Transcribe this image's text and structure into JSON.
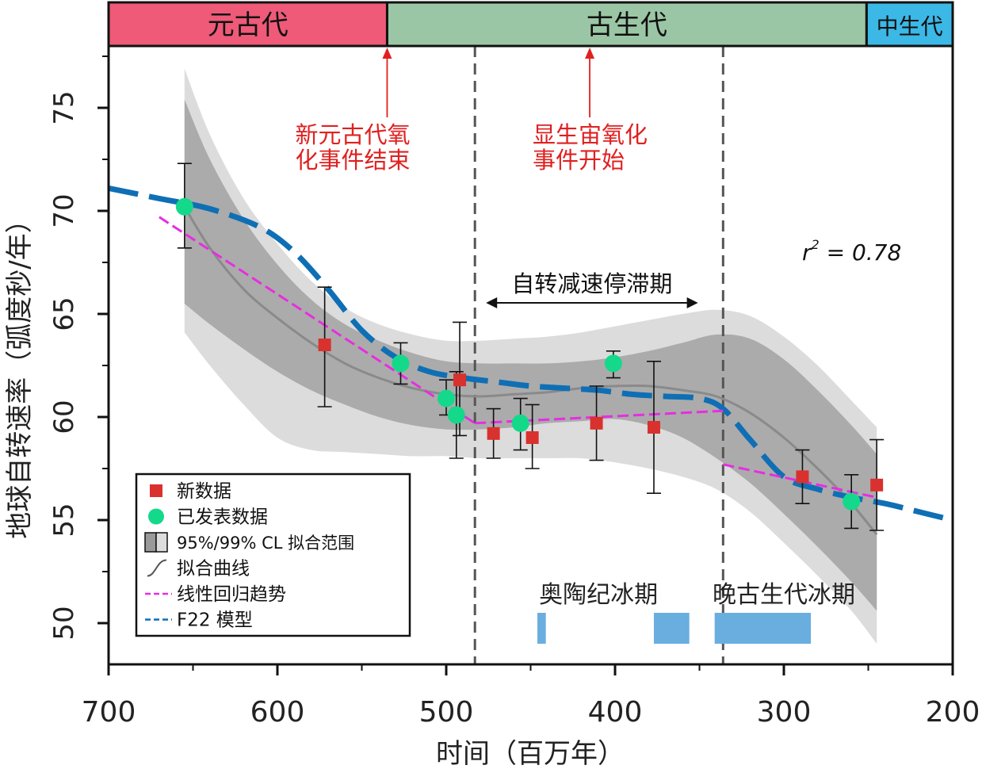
{
  "chart_data": {
    "type": "scatter",
    "xlabel": "时间（百万年）",
    "ylabel": "地球自转速率（弧度秒/年）",
    "xlim": [
      700,
      200
    ],
    "ylim": [
      48,
      78
    ],
    "x_ticks": [
      700,
      600,
      500,
      400,
      300,
      200
    ],
    "y_ticks": [
      50,
      55,
      60,
      65,
      70,
      75
    ],
    "x_tick_labels": [
      "700",
      "600",
      "500",
      "400",
      "300",
      "200"
    ],
    "y_tick_labels": [
      "50",
      "55",
      "60",
      "65",
      "70",
      "75"
    ],
    "grid": false,
    "legend_position": "bottom-left",
    "eras": [
      {
        "label": "元古代",
        "from": 700,
        "to": 535,
        "color": "#ee5a78"
      },
      {
        "label": "古生代",
        "from": 535,
        "to": 251,
        "color": "#9bc6a5"
      },
      {
        "label": "中生代",
        "from": 251,
        "to": 200,
        "color": "#3bb8e6"
      }
    ],
    "series": [
      {
        "name": "新数据",
        "marker": "square",
        "color": "#d9312e",
        "points": [
          {
            "x": 572,
            "y": 63.5,
            "err_low": 60.5,
            "err_high": 66.3
          },
          {
            "x": 492,
            "y": 61.8,
            "err_low": 59.1,
            "err_high": 64.6
          },
          {
            "x": 472,
            "y": 59.2,
            "err_low": 58.0,
            "err_high": 60.4
          },
          {
            "x": 449,
            "y": 59.0,
            "err_low": 57.5,
            "err_high": 60.6
          },
          {
            "x": 411,
            "y": 59.7,
            "err_low": 57.9,
            "err_high": 61.5
          },
          {
            "x": 377,
            "y": 59.5,
            "err_low": 56.3,
            "err_high": 62.7
          },
          {
            "x": 289,
            "y": 57.1,
            "err_low": 55.8,
            "err_high": 58.4
          },
          {
            "x": 245,
            "y": 56.7,
            "err_low": 54.5,
            "err_high": 58.9
          }
        ]
      },
      {
        "name": "已发表数据",
        "marker": "circle",
        "color": "#14d98a",
        "points": [
          {
            "x": 655,
            "y": 70.2,
            "err_low": 68.2,
            "err_high": 72.3
          },
          {
            "x": 527,
            "y": 62.6,
            "err_low": 61.6,
            "err_high": 63.6
          },
          {
            "x": 500,
            "y": 60.9,
            "err_low": 60.1,
            "err_high": 61.8
          },
          {
            "x": 494,
            "y": 60.1,
            "err_low": 58.0,
            "err_high": 62.2
          },
          {
            "x": 456,
            "y": 59.7,
            "err_low": 58.4,
            "err_high": 60.9
          },
          {
            "x": 401,
            "y": 62.6,
            "err_low": 61.9,
            "err_high": 63.2
          },
          {
            "x": 260,
            "y": 55.9,
            "err_low": 54.6,
            "err_high": 57.2
          }
        ]
      }
    ],
    "fit_curve": {
      "name": "拟合曲线",
      "color": "#8a8a8a",
      "x": [
        655,
        640,
        620,
        600,
        580,
        560,
        540,
        520,
        500,
        480,
        460,
        440,
        420,
        400,
        380,
        360,
        340,
        320,
        300,
        280,
        260,
        245
      ],
      "y": [
        70.2,
        68.2,
        66.2,
        64.8,
        63.6,
        62.6,
        61.9,
        61.4,
        61.1,
        61.0,
        61.1,
        61.2,
        61.4,
        61.5,
        61.5,
        61.3,
        61.0,
        60.2,
        59.0,
        57.5,
        55.8,
        54.3
      ],
      "ci95_upper": [
        75.4,
        72.5,
        69.6,
        67.4,
        65.7,
        64.5,
        63.7,
        63.1,
        62.7,
        62.6,
        62.6,
        62.6,
        62.7,
        62.9,
        63.2,
        63.6,
        64.0,
        63.8,
        62.8,
        61.3,
        59.6,
        58.2
      ],
      "ci95_lower": [
        65.5,
        64.5,
        63.3,
        62.2,
        61.3,
        60.6,
        60.0,
        59.6,
        59.4,
        59.4,
        59.5,
        59.7,
        59.8,
        59.9,
        59.6,
        59.0,
        58.0,
        56.8,
        55.3,
        53.7,
        52.0,
        50.6
      ],
      "ci99_upper": [
        76.9,
        73.7,
        70.6,
        68.4,
        66.6,
        65.3,
        64.5,
        64.0,
        63.7,
        63.7,
        63.8,
        63.9,
        64.1,
        64.4,
        64.7,
        65.0,
        65.2,
        64.9,
        63.9,
        62.5,
        60.8,
        59.5
      ],
      "ci99_lower": [
        64.1,
        62.5,
        60.6,
        59.0,
        58.4,
        58.3,
        58.2,
        58.1,
        58.1,
        58.0,
        58.0,
        58.0,
        58.0,
        57.8,
        57.5,
        57.1,
        56.5,
        55.4,
        53.9,
        52.3,
        50.6,
        49.0
      ]
    },
    "linear_trends": {
      "name": "线性回归趋势",
      "color": "#e62ee0",
      "segments": [
        {
          "x": [
            670,
            483
          ],
          "y": [
            69.7,
            59.7
          ]
        },
        {
          "x": [
            483,
            336
          ],
          "y": [
            59.7,
            60.3
          ]
        },
        {
          "x": [
            336,
            245
          ],
          "y": [
            57.7,
            56.1
          ]
        }
      ]
    },
    "f22_model": {
      "name": "F22 模型",
      "color": "#0f6fb5",
      "x": [
        700,
        670,
        640,
        610,
        590,
        570,
        550,
        530,
        510,
        490,
        470,
        450,
        430,
        410,
        390,
        370,
        350,
        336,
        320,
        300,
        280,
        260,
        240,
        220,
        200
      ],
      "y": [
        71.1,
        70.6,
        70.1,
        69.2,
        68.0,
        66.2,
        64.2,
        62.9,
        62.2,
        61.9,
        61.7,
        61.5,
        61.4,
        61.3,
        61.1,
        61.0,
        60.9,
        60.4,
        58.9,
        57.1,
        56.5,
        56.1,
        55.8,
        55.4,
        55.0
      ]
    },
    "boundaries": [
      483,
      336
    ],
    "glaciations": {
      "color": "#6aaee0",
      "y_range": [
        49.0,
        50.5
      ],
      "blocks": [
        [
          446,
          441
        ],
        [
          377,
          356
        ],
        [
          341,
          284
        ]
      ],
      "labels": [
        {
          "text": "奥陶纪冰期",
          "x": 445,
          "y": 51.0
        },
        {
          "text": "晚古生代冰期",
          "x": 300,
          "y": 51.0
        }
      ]
    },
    "stagnation": {
      "label": "自转减速停滞期",
      "from": 483,
      "to": 349,
      "y": 66.0
    },
    "annotations": [
      {
        "lines": [
          "新元古代氧",
          "化事件结束"
        ],
        "x": 535,
        "color": "#e02020"
      },
      {
        "lines": [
          "显生宙氧化",
          "事件开始"
        ],
        "x": 415,
        "color": "#e02020"
      }
    ],
    "r2": {
      "prefix": "r",
      "sup": "2",
      "rest": " = 0.78"
    },
    "legend": [
      {
        "label": "新数据",
        "kind": "square"
      },
      {
        "label": "已发表数据",
        "kind": "circle"
      },
      {
        "label": "95%/99% CL 拟合范围",
        "kind": "band"
      },
      {
        "label": "拟合曲线",
        "kind": "curve"
      },
      {
        "label": "线性回归趋势",
        "kind": "magenta-dash"
      },
      {
        "label": "F22 模型",
        "kind": "blue-dash"
      }
    ]
  }
}
